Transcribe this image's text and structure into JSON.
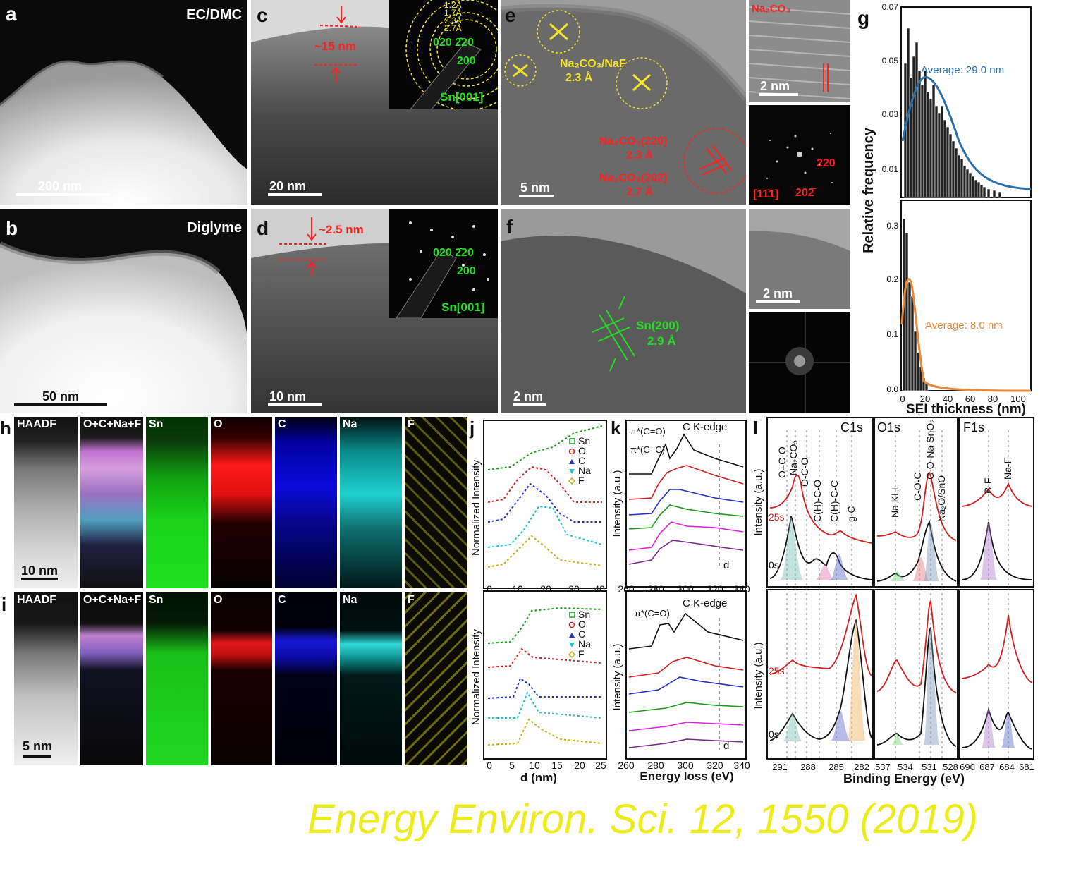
{
  "panels": {
    "a": {
      "letter": "a",
      "condition": "EC/DMC",
      "scale": "200 nm"
    },
    "b": {
      "letter": "b",
      "condition": "Diglyme",
      "scale": "50 nm"
    },
    "c": {
      "letter": "c",
      "thickness": "~15 nm",
      "scale": "20 nm",
      "rings": [
        "1.2Å",
        "1.7Å",
        "2.3Å",
        "2.7Å"
      ],
      "spots_top": "020 2̄20",
      "spots_mid": "200",
      "zone": "Sn[001]"
    },
    "d": {
      "letter": "d",
      "thickness": "~2.5 nm",
      "scale": "10 nm",
      "spots_top": "020 2̄20",
      "spots_mid": "200",
      "zone": "Sn[001]"
    },
    "e": {
      "letter": "e",
      "scale": "5 nm",
      "ann1_line1": "Na₂CO₃/NaF",
      "ann1_line2": "2.3 Å",
      "ann2_line1": "Na₂CO₃(220)",
      "ann2_line2": "2.3 Å",
      "ann3_line1": "Na₂CO₃(202̄)",
      "ann3_line2": "2.7 Å",
      "inset_top_label": "Na₂CO₃",
      "inset_top_scale": "2 nm",
      "inset_fft_a": "220",
      "inset_fft_b": "[11̄1]",
      "inset_fft_c": "202̄"
    },
    "f": {
      "letter": "f",
      "scale": "2 nm",
      "ann_line1": "Sn(200)",
      "ann_line2": "2.9 Å",
      "inset_scale": "2 nm"
    },
    "g": {
      "letter": "g",
      "ylabel": "Relative frequency",
      "xlabel": "SEI thickness (nm)",
      "top_avg": "Average: 29.0 nm",
      "bottom_avg": "Average: 8.0 nm",
      "top_yticks": [
        "0.07",
        "0.05",
        "0.03",
        "0.01"
      ],
      "bottom_yticks": [
        "0.3",
        "0.2",
        "0.1",
        "0.0"
      ],
      "xticks": [
        "0",
        "20",
        "40",
        "60",
        "80",
        "100"
      ],
      "top_color": "#2b6fa8",
      "bottom_color": "#e8883a"
    },
    "h": {
      "letter": "h",
      "scale": "10 nm"
    },
    "i": {
      "letter": "i",
      "scale": "5 nm"
    },
    "map_titles": [
      "HAADF",
      "O+C+Na+F",
      "Sn",
      "O",
      "C",
      "Na",
      "F"
    ],
    "j": {
      "letter": "j",
      "ylabel": "Normalized Intensity",
      "xlabel": "d (nm)",
      "legend": [
        "Sn",
        "O",
        "C",
        "Na",
        "F"
      ],
      "top_xticks": [
        "0",
        "10",
        "20",
        "30",
        "40"
      ],
      "bottom_xticks": [
        "0",
        "5",
        "10",
        "15",
        "20",
        "25"
      ]
    },
    "k": {
      "letter": "k",
      "title": "C K-edge",
      "ylabel": "Intensity (a.u.)",
      "xlabel": "Energy loss (eV)",
      "ann_top1": "π*(C=O)",
      "ann_top2": "π*(C=C)",
      "ann_bottom": "π*(C=O)",
      "arrow": "d",
      "xticks": [
        "260",
        "280",
        "300",
        "320",
        "340"
      ]
    },
    "l": {
      "letter": "l",
      "c1s": "C1s",
      "o1s": "O1s",
      "f1s": "F1s",
      "ylabel": "Intensity (a.u.)",
      "xlabel": "Binding Energy (eV)",
      "t25": "25s",
      "t0": "0s",
      "c1s_peaks": [
        "O=C-O",
        "Na₂CO₃",
        "O-C-O",
        "C(H)-C-O",
        "C(H)-C-C",
        "g-C"
      ],
      "o1s_peaks": [
        "Na KLL",
        "C-O-C",
        "C-O-Na SnO₂",
        "Na₂O/SnO"
      ],
      "f1s_peaks": [
        "B-F",
        "Na-F"
      ],
      "c1s_ticks": [
        "291",
        "288",
        "285",
        "282"
      ],
      "o1s_ticks": [
        "537",
        "534",
        "531",
        "528"
      ],
      "f1s_ticks": [
        "690",
        "687",
        "684",
        "681"
      ]
    }
  },
  "citation": "Energy Environ. Sci. 12, 1550 (2019)",
  "colors": {
    "red": "#ff2020",
    "green": "#22dd22",
    "yellow_annot": "#f5e52a",
    "citation": "#ecec1a"
  }
}
